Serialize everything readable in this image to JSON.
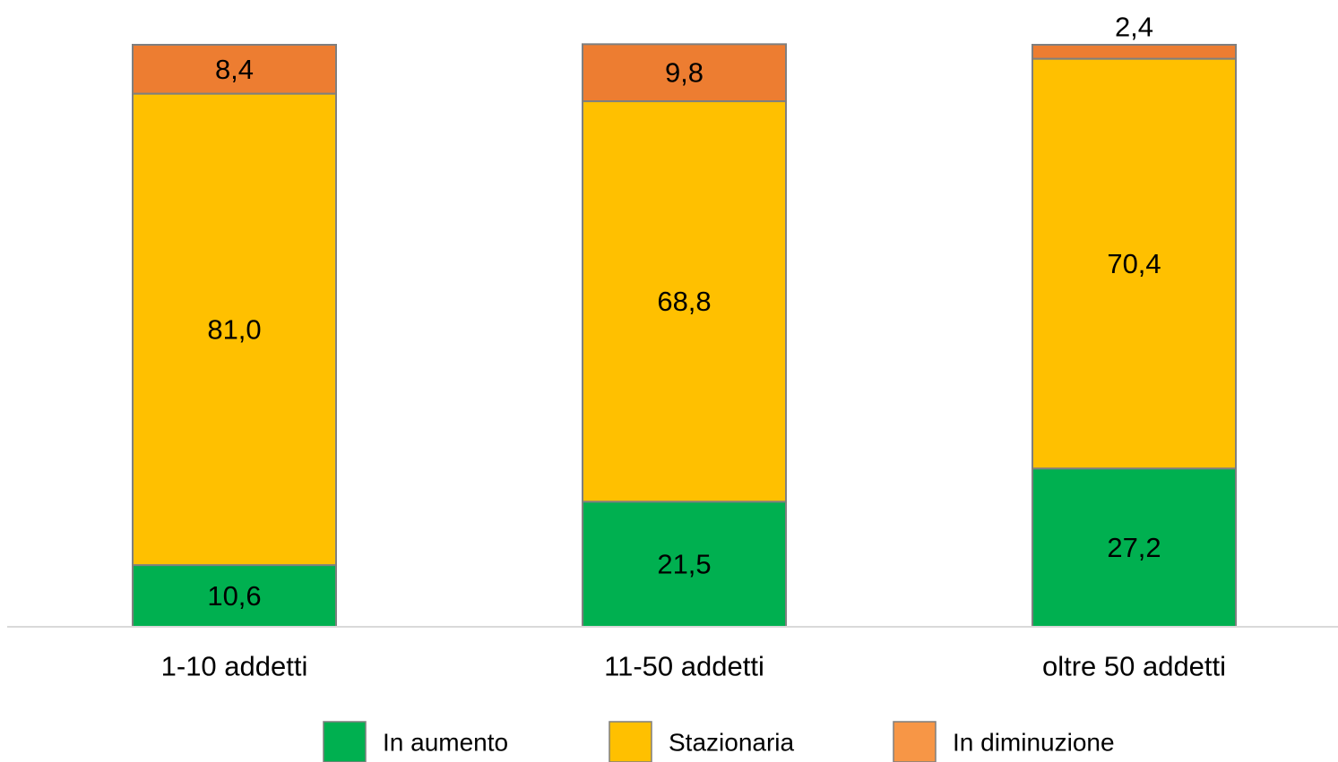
{
  "chart_data": {
    "type": "bar",
    "stacked": true,
    "categories": [
      "1-10 addetti",
      "11-50 addetti",
      "oltre 50 addetti"
    ],
    "series": [
      {
        "name": "In aumento",
        "values": [
          10.6,
          21.5,
          27.2
        ],
        "labels": [
          "10,6",
          "21,5",
          "27,2"
        ],
        "color": "#00b050"
      },
      {
        "name": "Stazionaria",
        "values": [
          81.0,
          68.8,
          70.4
        ],
        "labels": [
          "81,0",
          "68,8",
          "70,4"
        ],
        "color": "#ffc000"
      },
      {
        "name": "In diminuzione",
        "values": [
          8.4,
          9.8,
          2.4
        ],
        "labels": [
          "8,4",
          "9,8",
          "2,4"
        ],
        "color": "#ed7d31"
      }
    ],
    "legend_colors": [
      "#00b050",
      "#ffc000",
      "#f79646"
    ],
    "ylim": [
      0,
      100
    ],
    "grid": false,
    "legend_position": "bottom",
    "title": "",
    "xlabel": "",
    "ylabel": ""
  }
}
